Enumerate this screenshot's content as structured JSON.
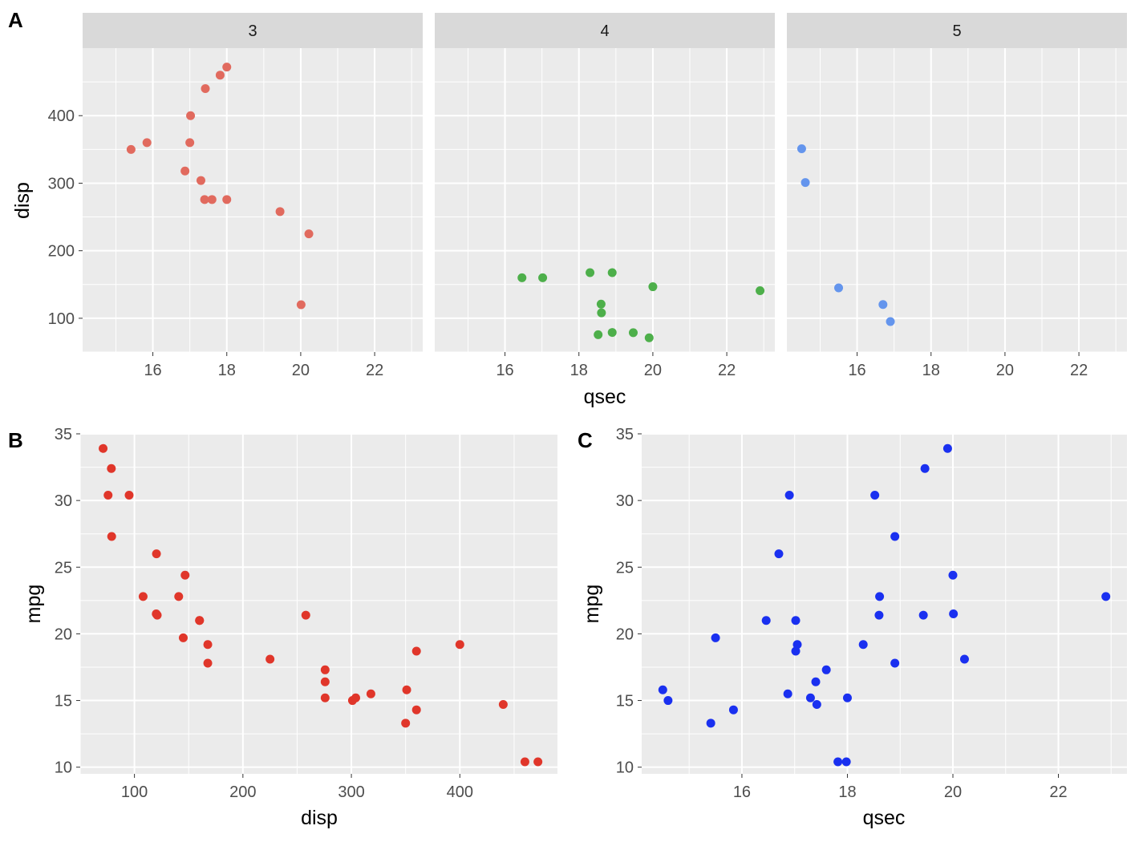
{
  "panel_tags": [
    "A",
    "B",
    "C"
  ],
  "chart_data": [
    {
      "tag": "A",
      "type": "scatter",
      "facet_by": "gear",
      "xlabel": "qsec",
      "ylabel": "disp",
      "xlim": [
        14.1,
        23.3
      ],
      "ylim": [
        50,
        500
      ],
      "xticks": [
        16,
        18,
        20,
        22
      ],
      "yticks": [
        100,
        200,
        300,
        400
      ],
      "grid": true,
      "legend": "none",
      "facets": [
        {
          "strip": "3",
          "color": "#E16A5E",
          "points": [
            {
              "x": 18.0,
              "y": 472
            },
            {
              "x": 17.82,
              "y": 460
            },
            {
              "x": 17.42,
              "y": 440
            },
            {
              "x": 17.02,
              "y": 400
            },
            {
              "x": 15.84,
              "y": 360
            },
            {
              "x": 17.0,
              "y": 360
            },
            {
              "x": 15.41,
              "y": 350
            },
            {
              "x": 16.87,
              "y": 318
            },
            {
              "x": 17.3,
              "y": 304
            },
            {
              "x": 17.4,
              "y": 275.8
            },
            {
              "x": 17.6,
              "y": 275.8
            },
            {
              "x": 18.0,
              "y": 275.8
            },
            {
              "x": 19.44,
              "y": 258
            },
            {
              "x": 20.22,
              "y": 225
            },
            {
              "x": 20.01,
              "y": 120.1
            }
          ]
        },
        {
          "strip": "4",
          "color": "#4DAF4A",
          "points": [
            {
              "x": 16.46,
              "y": 160
            },
            {
              "x": 17.02,
              "y": 160
            },
            {
              "x": 18.3,
              "y": 167.6
            },
            {
              "x": 18.9,
              "y": 167.6
            },
            {
              "x": 20.0,
              "y": 146.7
            },
            {
              "x": 22.9,
              "y": 140.8
            },
            {
              "x": 18.6,
              "y": 121
            },
            {
              "x": 18.61,
              "y": 108
            },
            {
              "x": 18.52,
              "y": 75.7
            },
            {
              "x": 18.9,
              "y": 79
            },
            {
              "x": 19.47,
              "y": 78.7
            },
            {
              "x": 19.9,
              "y": 71.1
            }
          ]
        },
        {
          "strip": "5",
          "color": "#6495ED",
          "points": [
            {
              "x": 14.5,
              "y": 351
            },
            {
              "x": 14.6,
              "y": 301
            },
            {
              "x": 15.5,
              "y": 145
            },
            {
              "x": 16.7,
              "y": 120.3
            },
            {
              "x": 16.9,
              "y": 95.1
            }
          ]
        }
      ]
    },
    {
      "tag": "B",
      "type": "scatter",
      "color": "#E0362A",
      "xlabel": "disp",
      "ylabel": "mpg",
      "xlim": [
        50,
        490
      ],
      "ylim": [
        9.5,
        35
      ],
      "xticks": [
        100,
        200,
        300,
        400
      ],
      "yticks": [
        10,
        15,
        20,
        25,
        30,
        35
      ],
      "grid": true,
      "legend": "none",
      "points": [
        {
          "x": 160,
          "y": 21
        },
        {
          "x": 160,
          "y": 21
        },
        {
          "x": 108,
          "y": 22.8
        },
        {
          "x": 258,
          "y": 21.4
        },
        {
          "x": 360,
          "y": 18.7
        },
        {
          "x": 225,
          "y": 18.1
        },
        {
          "x": 360,
          "y": 14.3
        },
        {
          "x": 146.7,
          "y": 24.4
        },
        {
          "x": 140.8,
          "y": 22.8
        },
        {
          "x": 167.6,
          "y": 19.2
        },
        {
          "x": 167.6,
          "y": 17.8
        },
        {
          "x": 275.8,
          "y": 16.4
        },
        {
          "x": 275.8,
          "y": 17.3
        },
        {
          "x": 275.8,
          "y": 15.2
        },
        {
          "x": 472,
          "y": 10.4
        },
        {
          "x": 460,
          "y": 10.4
        },
        {
          "x": 440,
          "y": 14.7
        },
        {
          "x": 78.7,
          "y": 32.4
        },
        {
          "x": 75.7,
          "y": 30.4
        },
        {
          "x": 71.1,
          "y": 33.9
        },
        {
          "x": 120.1,
          "y": 21.5
        },
        {
          "x": 318,
          "y": 15.5
        },
        {
          "x": 304,
          "y": 15.2
        },
        {
          "x": 350,
          "y": 13.3
        },
        {
          "x": 400,
          "y": 19.2
        },
        {
          "x": 79,
          "y": 27.3
        },
        {
          "x": 120.3,
          "y": 26
        },
        {
          "x": 95.1,
          "y": 30.4
        },
        {
          "x": 351,
          "y": 15.8
        },
        {
          "x": 145,
          "y": 19.7
        },
        {
          "x": 301,
          "y": 15
        },
        {
          "x": 121,
          "y": 21.4
        }
      ]
    },
    {
      "tag": "C",
      "type": "scatter",
      "color": "#1A30F0",
      "xlabel": "qsec",
      "ylabel": "mpg",
      "xlim": [
        14.1,
        23.3
      ],
      "ylim": [
        9.5,
        35
      ],
      "xticks": [
        16,
        18,
        20,
        22
      ],
      "yticks": [
        10,
        15,
        20,
        25,
        30,
        35
      ],
      "grid": true,
      "legend": "none",
      "points": [
        {
          "x": 16.46,
          "y": 21
        },
        {
          "x": 17.02,
          "y": 21
        },
        {
          "x": 18.61,
          "y": 22.8
        },
        {
          "x": 19.44,
          "y": 21.4
        },
        {
          "x": 17.02,
          "y": 18.7
        },
        {
          "x": 20.22,
          "y": 18.1
        },
        {
          "x": 15.84,
          "y": 14.3
        },
        {
          "x": 20.0,
          "y": 24.4
        },
        {
          "x": 22.9,
          "y": 22.8
        },
        {
          "x": 18.3,
          "y": 19.2
        },
        {
          "x": 18.9,
          "y": 17.8
        },
        {
          "x": 17.4,
          "y": 16.4
        },
        {
          "x": 17.6,
          "y": 17.3
        },
        {
          "x": 18.0,
          "y": 15.2
        },
        {
          "x": 17.98,
          "y": 10.4
        },
        {
          "x": 17.82,
          "y": 10.4
        },
        {
          "x": 17.42,
          "y": 14.7
        },
        {
          "x": 19.47,
          "y": 32.4
        },
        {
          "x": 18.52,
          "y": 30.4
        },
        {
          "x": 19.9,
          "y": 33.9
        },
        {
          "x": 20.01,
          "y": 21.5
        },
        {
          "x": 16.87,
          "y": 15.5
        },
        {
          "x": 17.3,
          "y": 15.2
        },
        {
          "x": 15.41,
          "y": 13.3
        },
        {
          "x": 17.05,
          "y": 19.2
        },
        {
          "x": 18.9,
          "y": 27.3
        },
        {
          "x": 16.7,
          "y": 26
        },
        {
          "x": 16.9,
          "y": 30.4
        },
        {
          "x": 14.5,
          "y": 15.8
        },
        {
          "x": 15.5,
          "y": 19.7
        },
        {
          "x": 14.6,
          "y": 15
        },
        {
          "x": 18.6,
          "y": 21.4
        }
      ]
    }
  ]
}
